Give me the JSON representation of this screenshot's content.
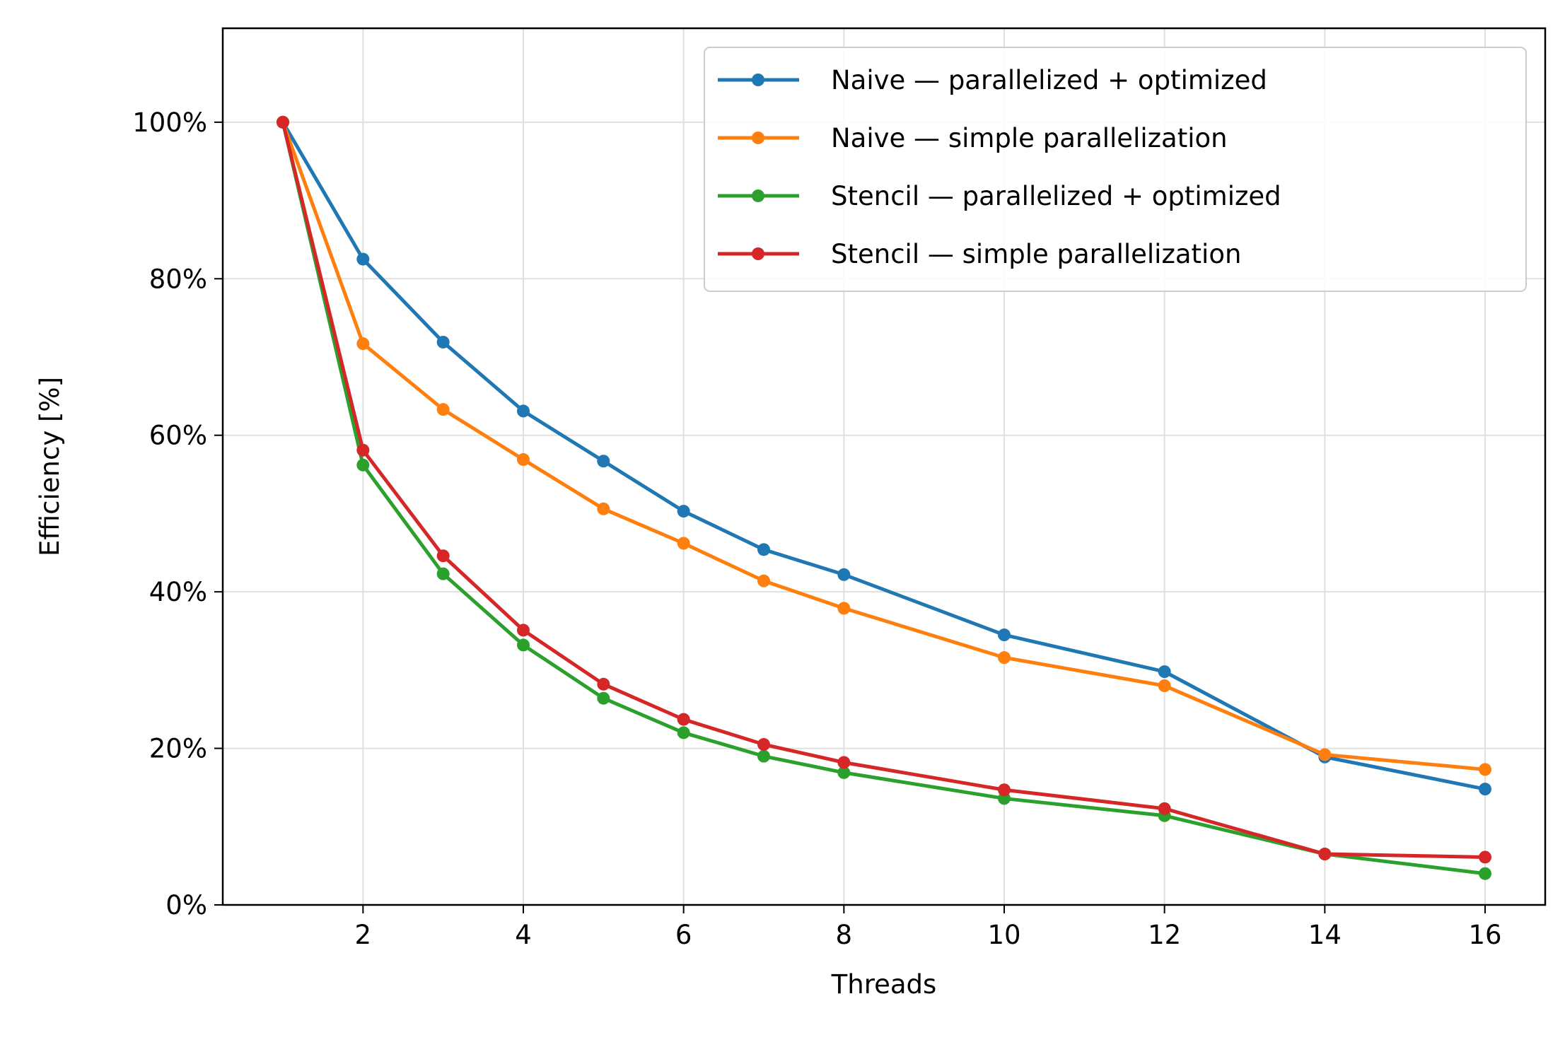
{
  "chart_data": {
    "type": "line",
    "title": "",
    "xlabel": "Threads",
    "ylabel": "Efficiency [%]",
    "x": [
      1,
      2,
      3,
      4,
      5,
      6,
      7,
      8,
      10,
      12,
      14,
      16
    ],
    "xticks": [
      2,
      4,
      6,
      8,
      10,
      12,
      14,
      16
    ],
    "xtick_labels": [
      "2",
      "4",
      "6",
      "8",
      "10",
      "12",
      "14",
      "16"
    ],
    "yticks": [
      0,
      20,
      40,
      60,
      80,
      100
    ],
    "ytick_labels": [
      "0%",
      "20%",
      "40%",
      "60%",
      "80%",
      "100%"
    ],
    "xlim": [
      0.25,
      16.75
    ],
    "ylim": [
      0,
      112
    ],
    "grid": true,
    "legend_position": "top-right",
    "series": [
      {
        "name": "Naive — parallelized + optimized",
        "color": "#1f77b4",
        "values": [
          100,
          82.5,
          71.9,
          63.1,
          56.7,
          50.3,
          45.4,
          42.2,
          34.5,
          29.8,
          18.9,
          14.8
        ]
      },
      {
        "name": "Naive — simple parallelization",
        "color": "#ff7f0e",
        "values": [
          100,
          71.7,
          63.3,
          56.9,
          50.6,
          46.2,
          41.4,
          37.9,
          31.6,
          28.0,
          19.2,
          17.3
        ]
      },
      {
        "name": "Stencil — parallelized + optimized",
        "color": "#2ca02c",
        "values": [
          100,
          56.2,
          42.3,
          33.2,
          26.4,
          22.0,
          19.0,
          16.9,
          13.6,
          11.4,
          6.5,
          4.0
        ]
      },
      {
        "name": "Stencil — simple parallelization",
        "color": "#d62728",
        "values": [
          100,
          58.1,
          44.6,
          35.1,
          28.2,
          23.7,
          20.5,
          18.2,
          14.7,
          12.3,
          6.5,
          6.1
        ]
      }
    ]
  }
}
